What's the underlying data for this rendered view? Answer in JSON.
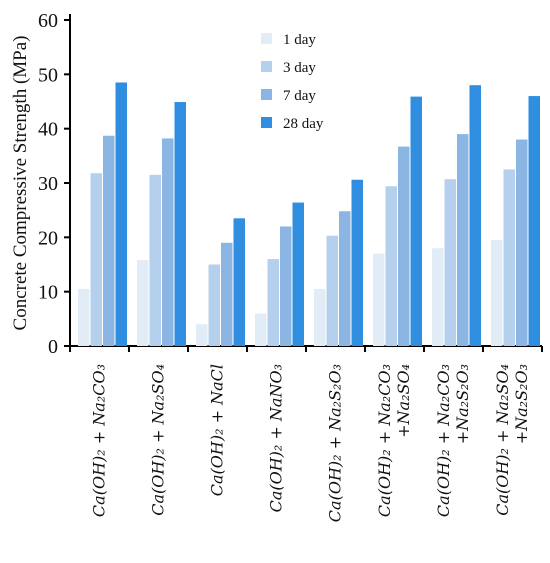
{
  "chart_data": {
    "type": "bar",
    "ylabel": "Concrete Compressive Strength (MPa)",
    "ylim": [
      0,
      60
    ],
    "yticks": [
      0,
      10,
      20,
      30,
      40,
      50,
      60
    ],
    "grid": false,
    "legend_position": "top-center",
    "categories": [
      [
        "Ca(OH)₂ + Na₂CO₃"
      ],
      [
        "Ca(OH)₂ + Na₂SO₄"
      ],
      [
        "Ca(OH)₂ + NaCl"
      ],
      [
        "Ca(OH)₂ + NaNO₃"
      ],
      [
        "Ca(OH)₂ + Na₂S₂O₃"
      ],
      [
        "Ca(OH)₂ + Na₂CO₃",
        "+Na₂SO₄"
      ],
      [
        "Ca(OH)₂ + Na₂CO₃",
        "+Na₂S₂O₃"
      ],
      [
        "Ca(OH)₂ + Na₂SO₄",
        "+Na₂S₂O₃"
      ]
    ],
    "series": [
      {
        "name": "1 day",
        "color": "#e1ecf6",
        "values": [
          10.5,
          15.8,
          4.0,
          6.0,
          10.5,
          17.0,
          18.0,
          19.5
        ]
      },
      {
        "name": "3 day",
        "color": "#b5d0ec",
        "values": [
          31.8,
          31.5,
          15.0,
          16.0,
          20.3,
          29.4,
          30.7,
          32.5
        ]
      },
      {
        "name": "7 day",
        "color": "#8bb5e3",
        "values": [
          38.7,
          38.2,
          19.0,
          22.0,
          24.8,
          36.7,
          39.0,
          38.0
        ]
      },
      {
        "name": "28 day",
        "color": "#2f8ee0",
        "values": [
          48.5,
          44.9,
          23.5,
          26.4,
          30.6,
          45.9,
          48.0,
          46.0
        ]
      }
    ]
  }
}
